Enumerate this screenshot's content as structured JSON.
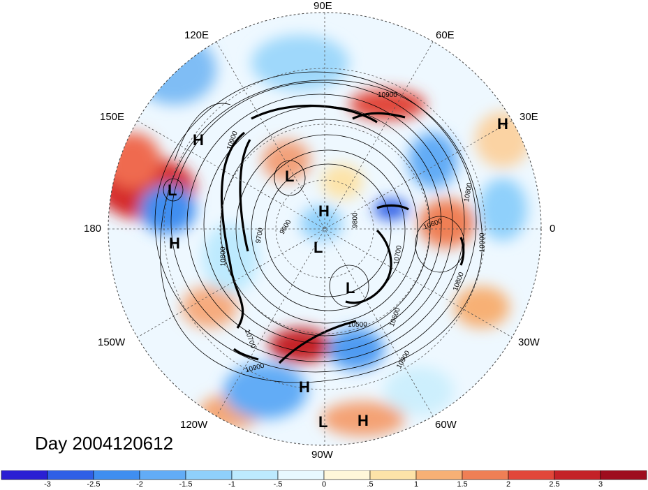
{
  "title": "Day 2004120612",
  "longitude_labels": {
    "e90": "90E",
    "e120": "120E",
    "e60": "60E",
    "e150": "150E",
    "e30": "30E",
    "deg180": "180",
    "deg0": "0",
    "w150": "150W",
    "w30": "30W",
    "w120": "120W",
    "w60": "60W",
    "w90": "90W"
  },
  "pressure_centers": [
    {
      "symbol": "H"
    },
    {
      "symbol": "H"
    },
    {
      "symbol": "L"
    },
    {
      "symbol": "H"
    },
    {
      "symbol": "L"
    },
    {
      "symbol": "H"
    },
    {
      "symbol": "L"
    },
    {
      "symbol": "L"
    },
    {
      "symbol": "H"
    },
    {
      "symbol": "L"
    },
    {
      "symbol": "H"
    }
  ],
  "contour_labels": [
    "10900",
    "10900",
    "10800",
    "10600",
    "10900",
    "10800",
    "10900",
    "10700",
    "10600",
    "10500",
    "10700",
    "10800",
    "10900",
    "9700",
    "9600",
    "9800"
  ],
  "colorbar": {
    "colors": [
      "#2a1fd3",
      "#2f5fe6",
      "#3f8ef0",
      "#62acf6",
      "#8fd0fb",
      "#bdeafe",
      "#e8f9ff",
      "#fff7d9",
      "#fde3a8",
      "#f7b075",
      "#ef7f55",
      "#e1473a",
      "#c42228",
      "#9e0d1e"
    ],
    "ticks": [
      "-3",
      "-2.5",
      "-2",
      "-1.5",
      "-1",
      "-.5",
      "0",
      ".5",
      "1",
      "1.5",
      "2",
      "2.5",
      "3"
    ]
  }
}
